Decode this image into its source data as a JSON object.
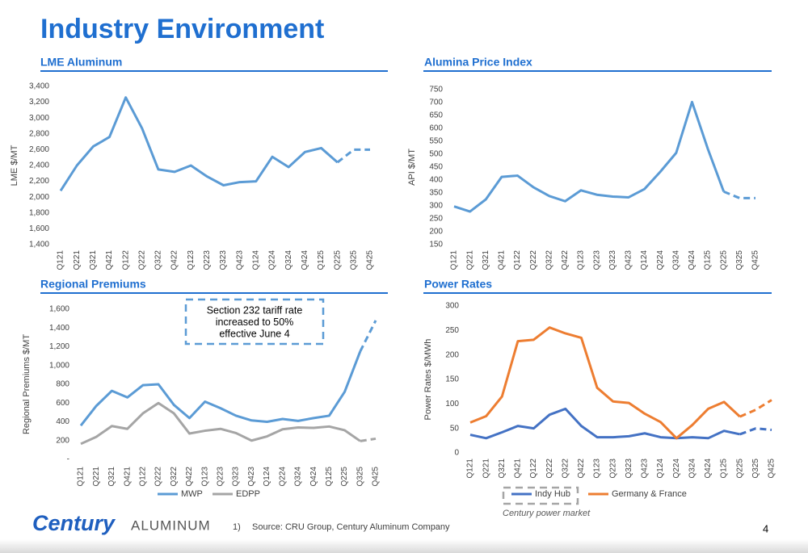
{
  "title": "Industry Environment",
  "footer": {
    "logo_main": "Century",
    "logo_sub": "ALUMINUM",
    "note_number": "1)",
    "source": "Source: CRU Group, Century Aluminum Company",
    "page_number": "4"
  },
  "chart_data": [
    {
      "type": "line",
      "title": "LME Aluminum",
      "ylabel": "LME $/MT",
      "categories": [
        "Q121",
        "Q221",
        "Q321",
        "Q421",
        "Q122",
        "Q222",
        "Q322",
        "Q422",
        "Q123",
        "Q223",
        "Q323",
        "Q423",
        "Q124",
        "Q224",
        "Q324",
        "Q424",
        "Q125",
        "Q225",
        "Q325",
        "Q425"
      ],
      "series": [
        {
          "color": "#5b9bd5",
          "dashed_from": 17,
          "values": [
            2080,
            2400,
            2640,
            2760,
            3260,
            2870,
            2350,
            2320,
            2400,
            2260,
            2150,
            2190,
            2200,
            2510,
            2380,
            2570,
            2620,
            2440,
            2600,
            2600
          ]
        }
      ],
      "ylim": [
        1400,
        3400
      ],
      "yticks": [
        {
          "value": 1400,
          "label": "1,400"
        },
        {
          "value": 1600,
          "label": "1,600"
        },
        {
          "value": 1800,
          "label": "1,800"
        },
        {
          "value": 2000,
          "label": "2,000"
        },
        {
          "value": 2200,
          "label": "2,200"
        },
        {
          "value": 2400,
          "label": "2,400"
        },
        {
          "value": 2600,
          "label": "2,600"
        },
        {
          "value": 2800,
          "label": "2,800"
        },
        {
          "value": 3000,
          "label": "3,000"
        },
        {
          "value": 3200,
          "label": "3,200"
        },
        {
          "value": 3400,
          "label": "3,400"
        }
      ]
    },
    {
      "type": "line",
      "title": "Alumina Price Index",
      "ylabel": "API $/MT",
      "categories": [
        "Q121",
        "Q221",
        "Q321",
        "Q421",
        "Q122",
        "Q222",
        "Q322",
        "Q422",
        "Q123",
        "Q223",
        "Q323",
        "Q423",
        "Q124",
        "Q224",
        "Q324",
        "Q424",
        "Q125",
        "Q225",
        "Q325",
        "Q425"
      ],
      "series": [
        {
          "color": "#5b9bd5",
          "dashed_from": 17,
          "values": [
            298,
            278,
            325,
            412,
            417,
            372,
            338,
            318,
            360,
            343,
            336,
            333,
            365,
            432,
            505,
            702,
            520,
            355,
            330,
            330
          ]
        }
      ],
      "ylim": [
        150,
        750
      ],
      "yticks": [
        150,
        200,
        250,
        300,
        350,
        400,
        450,
        500,
        550,
        600,
        650,
        700,
        750
      ]
    },
    {
      "type": "line",
      "title": "Regional Premiums",
      "ylabel": "Regional Premiums $/MT",
      "categories": [
        "Q121",
        "Q221",
        "Q321",
        "Q421",
        "Q122",
        "Q222",
        "Q322",
        "Q422",
        "Q123",
        "Q223",
        "Q323",
        "Q423",
        "Q124",
        "Q224",
        "Q324",
        "Q424",
        "Q125",
        "Q225",
        "Q325",
        "Q425"
      ],
      "series": [
        {
          "name": "MWP",
          "color": "#5b9bd5",
          "dashed_from": 18,
          "values": [
            360,
            570,
            730,
            660,
            790,
            800,
            580,
            440,
            615,
            545,
            465,
            415,
            400,
            430,
            410,
            440,
            465,
            720,
            1150,
            1480
          ]
        },
        {
          "name": "EDPP",
          "color": "#a5a5a5",
          "dashed_from": 18,
          "values": [
            165,
            240,
            355,
            325,
            490,
            600,
            490,
            275,
            305,
            325,
            280,
            200,
            245,
            320,
            340,
            335,
            350,
            310,
            195,
            220
          ]
        }
      ],
      "ylim": [
        0,
        1600
      ],
      "yticks": [
        {
          "value": 0,
          "label": "-"
        },
        200,
        400,
        600,
        800,
        {
          "value": 1000,
          "label": "1,000"
        },
        {
          "value": 1200,
          "label": "1,200"
        },
        {
          "value": 1400,
          "label": "1,400"
        },
        {
          "value": 1600,
          "label": "1,600"
        }
      ],
      "annotation": [
        "Section 232 tariff rate",
        "increased to 50%",
        "effective June 4"
      ]
    },
    {
      "type": "line",
      "title": "Power Rates",
      "ylabel": "Power Rates $/MWh",
      "categories": [
        "Q121",
        "Q221",
        "Q321",
        "Q421",
        "Q122",
        "Q222",
        "Q322",
        "Q422",
        "Q123",
        "Q223",
        "Q323",
        "Q423",
        "Q124",
        "Q224",
        "Q324",
        "Q424",
        "Q125",
        "Q225",
        "Q325",
        "Q425"
      ],
      "series": [
        {
          "name": "Indy Hub",
          "color": "#4472c4",
          "dashed_from": 17,
          "values": [
            37,
            30,
            42,
            55,
            50,
            78,
            90,
            55,
            32,
            32,
            34,
            40,
            32,
            30,
            32,
            30,
            45,
            38,
            50,
            47
          ]
        },
        {
          "name": "Germany & France",
          "color": "#ed7d31",
          "dashed_from": 17,
          "values": [
            62,
            75,
            115,
            228,
            231,
            256,
            244,
            235,
            133,
            105,
            102,
            80,
            63,
            30,
            57,
            90,
            104,
            74,
            88,
            108
          ]
        }
      ],
      "ylim": [
        0,
        300
      ],
      "yticks": [
        0,
        50,
        100,
        150,
        200,
        250,
        300
      ],
      "legend_note": "Century power market"
    }
  ]
}
